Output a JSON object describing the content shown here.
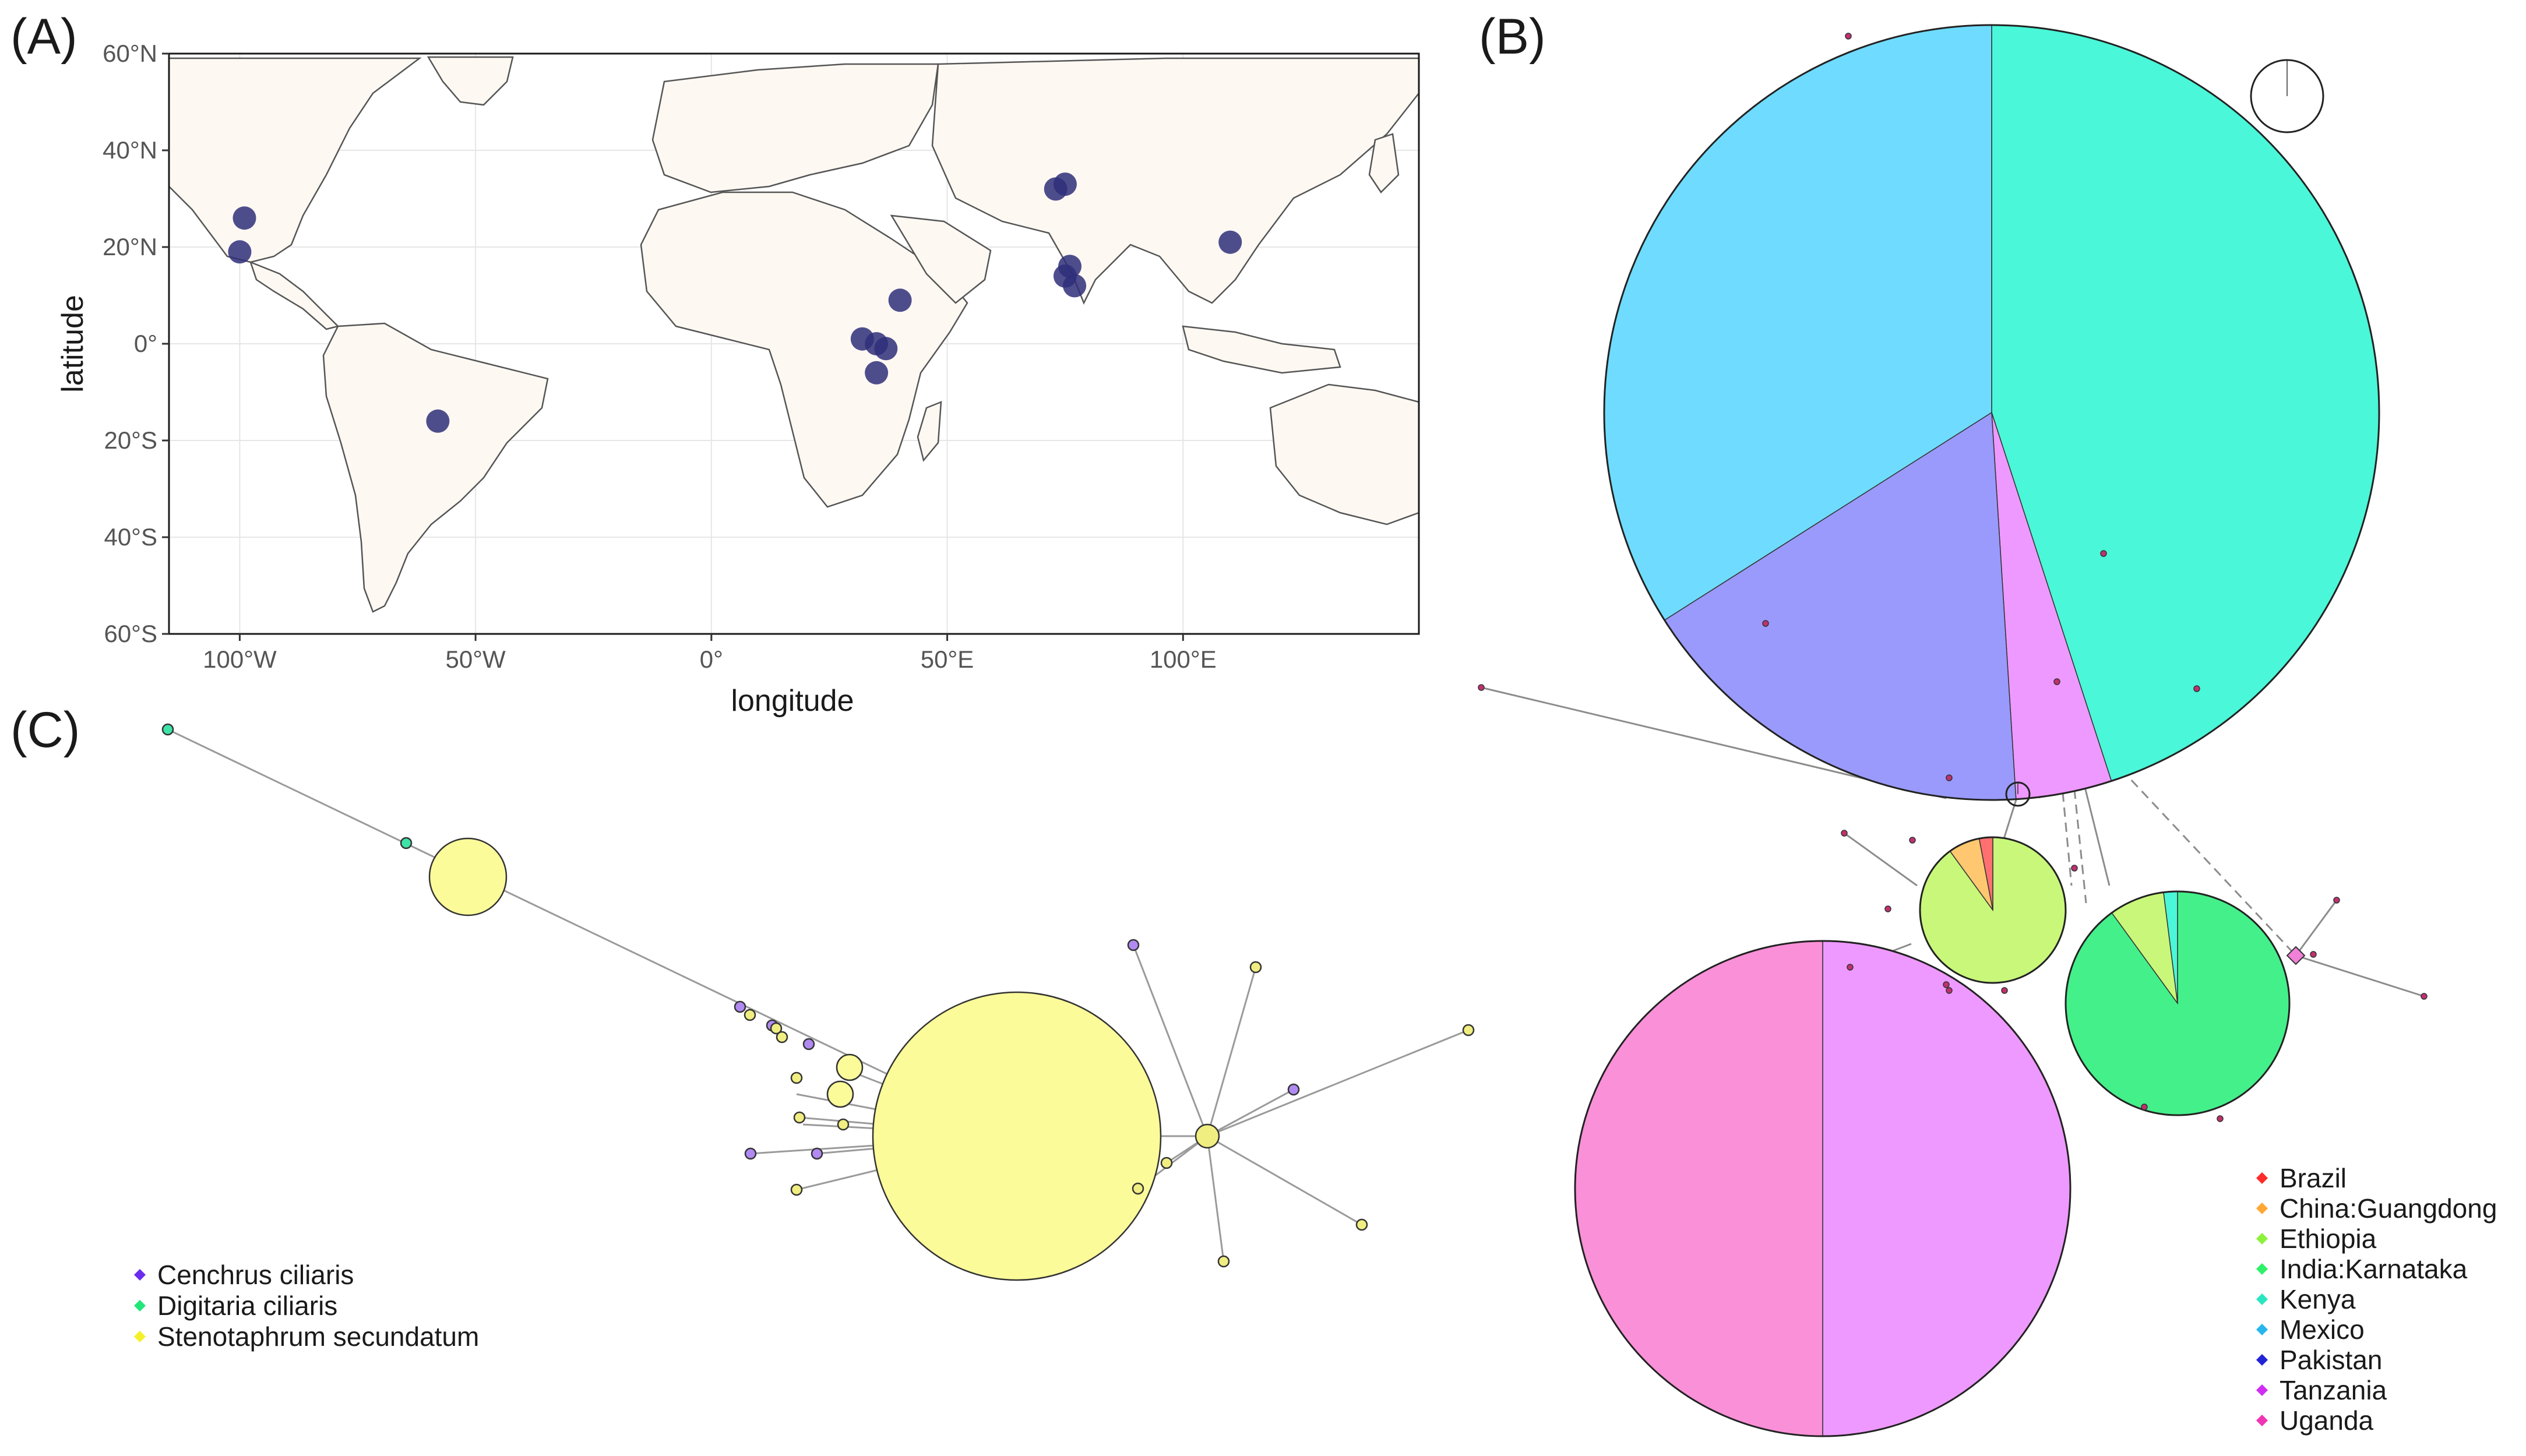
{
  "panels": {
    "a": "(A)",
    "b": "(B)",
    "c": "(C)"
  },
  "colors": {
    "land": "#fdf8f2",
    "site_point": "#2f2f7a",
    "grid": "#e6e6e6",
    "edge": "#8c8c8c"
  },
  "chart_data": [
    {
      "type": "scatter",
      "panel": "(A)",
      "xlabel": "longitude",
      "ylabel": "latitude",
      "xlim": [
        -115,
        150
      ],
      "ylim": [
        -60,
        60
      ],
      "x_ticks": [
        {
          "value": -100,
          "label": "100°W"
        },
        {
          "value": -50,
          "label": "50°W"
        },
        {
          "value": 0,
          "label": "0°"
        },
        {
          "value": 50,
          "label": "50°E"
        },
        {
          "value": 100,
          "label": "100°E"
        }
      ],
      "y_ticks": [
        {
          "value": 60,
          "label": "60°N"
        },
        {
          "value": 40,
          "label": "40°N"
        },
        {
          "value": 20,
          "label": "20°N"
        },
        {
          "value": 0,
          "label": "0°"
        },
        {
          "value": -20,
          "label": "20°S"
        },
        {
          "value": -40,
          "label": "40°S"
        },
        {
          "value": -60,
          "label": "60°S"
        }
      ],
      "grid": true,
      "points": [
        {
          "lon": -99,
          "lat": 26
        },
        {
          "lon": -100,
          "lat": 19
        },
        {
          "lon": -58,
          "lat": -16
        },
        {
          "lon": 40,
          "lat": 9
        },
        {
          "lon": 32,
          "lat": 1
        },
        {
          "lon": 35,
          "lat": 0
        },
        {
          "lon": 37,
          "lat": -1
        },
        {
          "lon": 35,
          "lat": -6
        },
        {
          "lon": 73,
          "lat": 32
        },
        {
          "lon": 75,
          "lat": 33
        },
        {
          "lon": 76,
          "lat": 16
        },
        {
          "lon": 75,
          "lat": 14
        },
        {
          "lon": 77,
          "lat": 12
        },
        {
          "lon": 110,
          "lat": 21
        }
      ]
    },
    {
      "type": "network",
      "panel": "(B)",
      "legend": [
        {
          "name": "Brazil",
          "color": "#ff2a2a"
        },
        {
          "name": "China:Guangdong",
          "color": "#ffa733"
        },
        {
          "name": "Ethiopia",
          "color": "#8ef23c"
        },
        {
          "name": "India:Karnataka",
          "color": "#2ef06a"
        },
        {
          "name": "Kenya",
          "color": "#29e6c1"
        },
        {
          "name": "Mexico",
          "color": "#27b7ef"
        },
        {
          "name": "Pakistan",
          "color": "#2323d6"
        },
        {
          "name": "Tanzania",
          "color": "#cf2ef2"
        },
        {
          "name": "Uganda",
          "color": "#f035b4"
        }
      ]
    },
    {
      "type": "network",
      "panel": "(C)",
      "legend": [
        {
          "name": "Cenchrus ciliaris",
          "color": "#6a2cf0"
        },
        {
          "name": "Digitaria ciliaris",
          "color": "#22e67a"
        },
        {
          "name": "Stenotaphrum secundatum",
          "color": "#f5f028"
        }
      ]
    }
  ]
}
